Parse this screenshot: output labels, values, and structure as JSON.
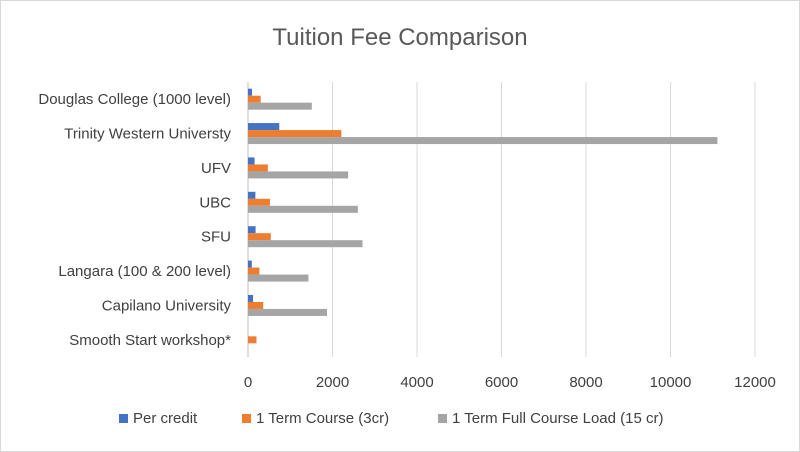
{
  "chart_data": {
    "type": "bar",
    "orientation": "horizontal",
    "title": "Tuition Fee Comparison",
    "xlabel": "",
    "ylabel": "",
    "xlim": [
      0,
      12000
    ],
    "xticks": [
      "0",
      "2000",
      "4000",
      "6000",
      "8000",
      "10000",
      "12000"
    ],
    "grid": true,
    "legend_position": "bottom",
    "categories": [
      "Douglas College (1000 level)",
      "Trinity Western Universty",
      "UFV",
      "UBC",
      "SFU",
      "Langara (100 & 200 level)",
      "Capilano University",
      "Smooth Start workshop*"
    ],
    "series": [
      {
        "name": "Per credit",
        "color": "#4472c4",
        "values": [
          95,
          740,
          155,
          175,
          180,
          90,
          120,
          0
        ]
      },
      {
        "name": "1 Term Course (3cr)",
        "color": "#ed7d31",
        "values": [
          300,
          2210,
          470,
          520,
          540,
          270,
          360,
          200
        ]
      },
      {
        "name": "1 Term Full Course Load (15 cr)",
        "color": "#a5a5a5",
        "values": [
          1510,
          11110,
          2370,
          2600,
          2710,
          1430,
          1870,
          0
        ]
      }
    ]
  }
}
